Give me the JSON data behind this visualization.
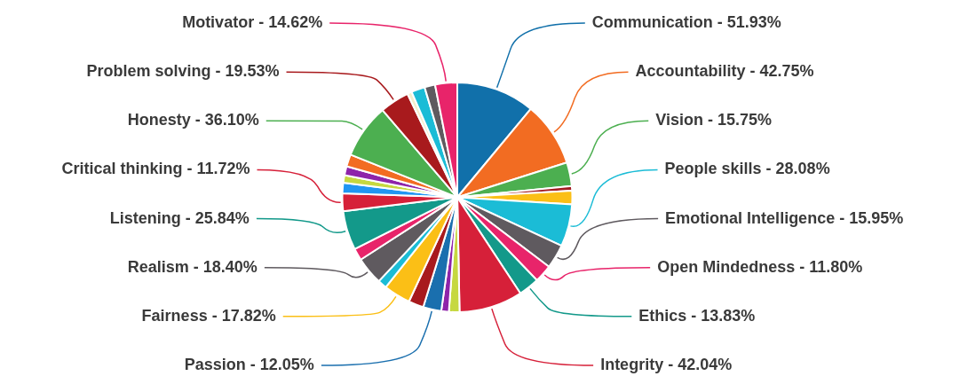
{
  "chart_data": {
    "type": "pie",
    "categories": [
      "Communication",
      "Accountability",
      "Vision",
      null,
      null,
      "People skills",
      "Emotional Intelligence",
      "Open Mindedness",
      "Ethics",
      "Integrity",
      null,
      null,
      "Passion",
      null,
      "Fairness",
      null,
      "Realism",
      null,
      "Listening",
      "Critical thinking",
      null,
      null,
      null,
      null,
      "Honesty",
      "Problem solving",
      null,
      null,
      null,
      "Motivator"
    ],
    "values": [
      51.93,
      42.75,
      15.75,
      3,
      9,
      28.08,
      15.95,
      11.8,
      13.83,
      42.04,
      7,
      5,
      12.05,
      10,
      17.82,
      6,
      18.4,
      8,
      25.84,
      11.72,
      7,
      5,
      6,
      8,
      36.1,
      19.53,
      3,
      9,
      7,
      14.62
    ],
    "value_labels": [
      "51.93%",
      "42.75%",
      "15.75%",
      null,
      null,
      "28.08%",
      "15.95%",
      "11.80%",
      "13.83%",
      "42.04%",
      null,
      null,
      "12.05%",
      null,
      "17.82%",
      null,
      "18.40%",
      null,
      "25.84%",
      "11.72%",
      null,
      null,
      null,
      null,
      "36.10%",
      "19.53%",
      null,
      null,
      null,
      "14.62%"
    ],
    "colors": [
      "#1170aa",
      "#f26c22",
      "#4caf50",
      "#a31c22",
      "#fbbf16",
      "#1bbcd6",
      "#5f5a5f",
      "#e8246a",
      "#13998a",
      "#d62039",
      "#c6d840",
      "#8e24aa",
      "#1a6fae",
      "#a81a1d",
      "#fbbf16",
      "#1bbcd6",
      "#5f5a5f",
      "#e8246a",
      "#13998a",
      "#d62039",
      "#2196f3",
      "#c6d840",
      "#8e24aa",
      "#f26c22",
      "#4caf50",
      "#a81a1d",
      "#f5eecc",
      "#1bbcd6",
      "#5f5a5f",
      "#e8246a"
    ]
  }
}
